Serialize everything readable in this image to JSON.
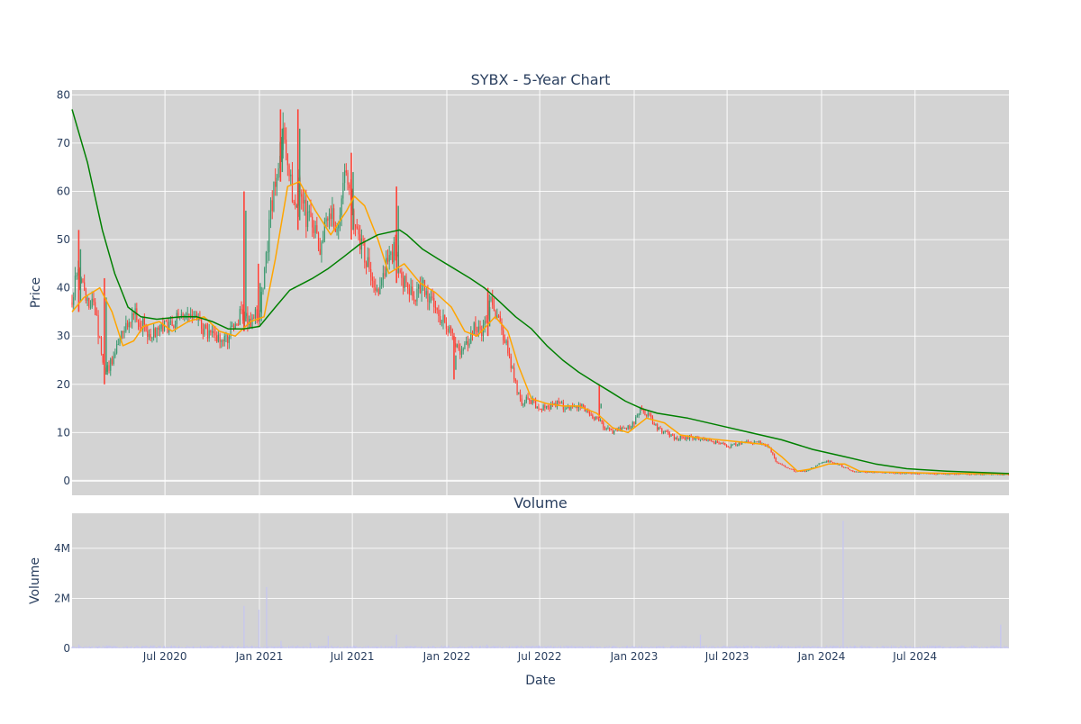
{
  "chart_data": [
    {
      "type": "candlestick",
      "title": "SYBX - 5-Year Chart",
      "xlabel": "",
      "ylabel": "Price",
      "ylim": [
        -3,
        81
      ],
      "yticks": [
        0,
        10,
        20,
        30,
        40,
        50,
        60,
        70,
        80
      ],
      "x_range": [
        "2020-01-02",
        "2024-12-31"
      ],
      "grid": true,
      "background": "#d3d3d3",
      "up_color": "#3d9970",
      "down_color": "#ff4136",
      "price_path": [
        [
          "2020-01-02",
          37
        ],
        [
          "2020-01-10",
          43
        ],
        [
          "2020-01-20",
          41
        ],
        [
          "2020-02-01",
          38
        ],
        [
          "2020-02-15",
          35
        ],
        [
          "2020-02-24",
          30
        ],
        [
          "2020-03-06",
          22
        ],
        [
          "2020-03-16",
          24
        ],
        [
          "2020-04-01",
          28
        ],
        [
          "2020-04-15",
          32
        ],
        [
          "2020-05-01",
          35
        ],
        [
          "2020-05-15",
          33
        ],
        [
          "2020-06-01",
          30
        ],
        [
          "2020-06-15",
          31
        ],
        [
          "2020-07-01",
          32
        ],
        [
          "2020-07-15",
          33
        ],
        [
          "2020-08-01",
          34
        ],
        [
          "2020-08-15",
          36
        ],
        [
          "2020-09-01",
          34
        ],
        [
          "2020-09-15",
          31
        ],
        [
          "2020-10-01",
          30
        ],
        [
          "2020-10-15",
          29
        ],
        [
          "2020-11-01",
          30
        ],
        [
          "2020-11-15",
          33
        ],
        [
          "2020-12-01",
          35
        ],
        [
          "2020-12-15",
          33
        ],
        [
          "2021-01-01",
          35
        ],
        [
          "2021-01-15",
          47
        ],
        [
          "2021-01-25",
          58
        ],
        [
          "2021-02-05",
          62
        ],
        [
          "2021-02-15",
          72
        ],
        [
          "2021-02-25",
          65
        ],
        [
          "2021-03-10",
          57
        ],
        [
          "2021-03-20",
          62
        ],
        [
          "2021-04-01",
          55
        ],
        [
          "2021-04-15",
          52
        ],
        [
          "2021-05-01",
          48
        ],
        [
          "2021-05-15",
          57
        ],
        [
          "2021-06-01",
          52
        ],
        [
          "2021-06-15",
          64
        ],
        [
          "2021-07-01",
          57
        ],
        [
          "2021-07-15",
          49
        ],
        [
          "2021-08-01",
          45
        ],
        [
          "2021-08-20",
          39
        ],
        [
          "2021-09-05",
          45
        ],
        [
          "2021-09-20",
          48
        ],
        [
          "2021-10-01",
          42
        ],
        [
          "2021-10-15",
          40
        ],
        [
          "2021-11-01",
          38
        ],
        [
          "2021-11-15",
          40
        ],
        [
          "2021-12-01",
          37
        ],
        [
          "2021-12-20",
          34
        ],
        [
          "2022-01-10",
          30
        ],
        [
          "2022-01-25",
          27
        ],
        [
          "2022-02-10",
          29
        ],
        [
          "2022-02-25",
          32
        ],
        [
          "2022-03-10",
          30
        ],
        [
          "2022-03-25",
          37
        ],
        [
          "2022-04-10",
          34
        ],
        [
          "2022-04-25",
          29
        ],
        [
          "2022-05-10",
          22
        ],
        [
          "2022-05-25",
          16
        ],
        [
          "2022-06-10",
          17
        ],
        [
          "2022-07-01",
          15
        ],
        [
          "2022-08-01",
          16
        ],
        [
          "2022-09-01",
          15
        ],
        [
          "2022-09-20",
          16
        ],
        [
          "2022-10-05",
          14
        ],
        [
          "2022-10-20",
          13
        ],
        [
          "2022-11-05",
          11
        ],
        [
          "2022-11-20",
          10
        ],
        [
          "2022-12-10",
          11
        ],
        [
          "2022-12-25",
          11
        ],
        [
          "2023-01-05",
          13
        ],
        [
          "2023-01-15",
          15
        ],
        [
          "2023-02-01",
          13
        ],
        [
          "2023-02-15",
          11
        ],
        [
          "2023-03-01",
          10
        ],
        [
          "2023-03-20",
          9
        ],
        [
          "2023-04-10",
          9
        ],
        [
          "2023-05-01",
          9
        ],
        [
          "2023-06-01",
          8
        ],
        [
          "2023-06-20",
          8
        ],
        [
          "2023-07-01",
          7
        ],
        [
          "2023-08-01",
          8
        ],
        [
          "2023-09-01",
          8
        ],
        [
          "2023-09-20",
          7
        ],
        [
          "2023-10-05",
          4
        ],
        [
          "2023-10-20",
          3
        ],
        [
          "2023-11-10",
          2
        ],
        [
          "2023-12-01",
          2
        ],
        [
          "2023-12-20",
          3
        ],
        [
          "2024-01-01",
          4
        ],
        [
          "2024-01-20",
          4
        ],
        [
          "2024-02-10",
          3
        ],
        [
          "2024-03-01",
          2
        ],
        [
          "2024-04-01",
          1.8
        ],
        [
          "2024-06-01",
          1.6
        ],
        [
          "2024-08-01",
          1.5
        ],
        [
          "2024-10-01",
          1.4
        ],
        [
          "2024-12-31",
          1.3
        ]
      ],
      "spikes": [
        [
          "2020-01-15",
          52,
          35
        ],
        [
          "2020-03-05",
          42,
          20
        ],
        [
          "2020-12-02",
          60,
          31
        ],
        [
          "2020-12-30",
          45,
          33
        ],
        [
          "2021-02-11",
          77,
          62
        ],
        [
          "2021-03-17",
          77,
          52
        ],
        [
          "2021-06-29",
          68,
          50
        ],
        [
          "2021-09-25",
          61,
          41
        ],
        [
          "2022-01-15",
          30,
          21
        ],
        [
          "2022-03-22",
          40,
          30
        ],
        [
          "2022-10-25",
          20,
          13
        ]
      ],
      "overlays": [
        {
          "name": "",
          "color": "#ffa500",
          "points": [
            [
              "2020-01-02",
              35
            ],
            [
              "2020-01-25",
              38
            ],
            [
              "2020-02-25",
              40
            ],
            [
              "2020-03-20",
              35
            ],
            [
              "2020-04-10",
              28
            ],
            [
              "2020-05-01",
              29
            ],
            [
              "2020-05-20",
              32
            ],
            [
              "2020-06-20",
              33
            ],
            [
              "2020-07-15",
              31
            ],
            [
              "2020-08-15",
              33
            ],
            [
              "2020-09-15",
              34
            ],
            [
              "2020-10-15",
              31
            ],
            [
              "2020-11-15",
              30
            ],
            [
              "2020-12-15",
              33
            ],
            [
              "2021-01-10",
              34
            ],
            [
              "2021-02-01",
              46
            ],
            [
              "2021-02-25",
              61
            ],
            [
              "2021-03-20",
              62
            ],
            [
              "2021-04-20",
              56
            ],
            [
              "2021-05-20",
              51
            ],
            [
              "2021-06-20",
              56
            ],
            [
              "2021-07-05",
              59
            ],
            [
              "2021-07-25",
              57
            ],
            [
              "2021-08-20",
              50
            ],
            [
              "2021-09-10",
              43
            ],
            [
              "2021-10-10",
              45
            ],
            [
              "2021-11-10",
              41
            ],
            [
              "2021-12-10",
              39
            ],
            [
              "2022-01-10",
              36
            ],
            [
              "2022-02-05",
              31
            ],
            [
              "2022-03-01",
              30
            ],
            [
              "2022-04-05",
              34
            ],
            [
              "2022-04-30",
              31
            ],
            [
              "2022-05-20",
              24
            ],
            [
              "2022-06-15",
              17
            ],
            [
              "2022-07-15",
              16
            ],
            [
              "2022-08-15",
              15.5
            ],
            [
              "2022-09-15",
              15.5
            ],
            [
              "2022-10-20",
              14
            ],
            [
              "2022-11-20",
              11
            ],
            [
              "2022-12-20",
              10
            ],
            [
              "2023-01-25",
              13
            ],
            [
              "2023-03-01",
              12
            ],
            [
              "2023-04-01",
              9.5
            ],
            [
              "2023-05-01",
              9
            ],
            [
              "2023-06-15",
              8.5
            ],
            [
              "2023-08-01",
              8
            ],
            [
              "2023-09-15",
              7.5
            ],
            [
              "2023-10-15",
              5
            ],
            [
              "2023-11-15",
              2
            ],
            [
              "2023-12-15",
              2.5
            ],
            [
              "2024-01-15",
              3.5
            ],
            [
              "2024-02-15",
              3.5
            ],
            [
              "2024-03-15",
              2
            ],
            [
              "2024-05-01",
              1.8
            ],
            [
              "2024-08-01",
              1.6
            ],
            [
              "2024-12-31",
              1.4
            ]
          ]
        },
        {
          "name": "",
          "color": "#008000",
          "points": [
            [
              "2020-01-02",
              77
            ],
            [
              "2020-02-01",
              66
            ],
            [
              "2020-03-01",
              52
            ],
            [
              "2020-03-25",
              43
            ],
            [
              "2020-04-20",
              36
            ],
            [
              "2020-05-15",
              34
            ],
            [
              "2020-06-15",
              33.5
            ],
            [
              "2020-08-01",
              34
            ],
            [
              "2020-09-01",
              34
            ],
            [
              "2020-10-01",
              33
            ],
            [
              "2020-11-01",
              31.5
            ],
            [
              "2020-12-01",
              31.5
            ],
            [
              "2021-01-01",
              32
            ],
            [
              "2021-02-01",
              36
            ],
            [
              "2021-03-01",
              39.5
            ],
            [
              "2021-04-15",
              42
            ],
            [
              "2021-05-15",
              44
            ],
            [
              "2021-06-15",
              46.5
            ],
            [
              "2021-07-15",
              49
            ],
            [
              "2021-08-20",
              51
            ],
            [
              "2021-10-01",
              52
            ],
            [
              "2021-10-15",
              51
            ],
            [
              "2021-11-15",
              48
            ],
            [
              "2021-12-15",
              46
            ],
            [
              "2022-01-15",
              44
            ],
            [
              "2022-02-15",
              42
            ],
            [
              "2022-03-15",
              40
            ],
            [
              "2022-04-15",
              37
            ],
            [
              "2022-05-15",
              34
            ],
            [
              "2022-06-15",
              31.5
            ],
            [
              "2022-07-15",
              28
            ],
            [
              "2022-08-15",
              25
            ],
            [
              "2022-09-15",
              22.5
            ],
            [
              "2022-10-15",
              20.5
            ],
            [
              "2022-11-15",
              18.5
            ],
            [
              "2022-12-15",
              16.5
            ],
            [
              "2023-01-15",
              15
            ],
            [
              "2023-02-15",
              14
            ],
            [
              "2023-04-15",
              13
            ],
            [
              "2023-06-15",
              11.5
            ],
            [
              "2023-08-15",
              10
            ],
            [
              "2023-10-15",
              8.5
            ],
            [
              "2023-12-15",
              6.5
            ],
            [
              "2024-02-15",
              5
            ],
            [
              "2024-04-15",
              3.5
            ],
            [
              "2024-06-15",
              2.5
            ],
            [
              "2024-09-01",
              2
            ],
            [
              "2024-12-31",
              1.5
            ]
          ]
        }
      ]
    },
    {
      "type": "bar",
      "title": "Volume",
      "xlabel": "Date",
      "ylabel": "Volume",
      "ylim": [
        0,
        5400000
      ],
      "yticks": [
        0,
        2000000,
        4000000
      ],
      "ytick_labels": [
        "0",
        "2M",
        "4M"
      ],
      "xticks": [
        "2020-07-01",
        "2021-01-01",
        "2021-07-01",
        "2022-01-01",
        "2022-07-01",
        "2023-01-01",
        "2023-07-01",
        "2024-01-01",
        "2024-07-01"
      ],
      "xtick_labels": [
        "Jul 2020",
        "Jan 2021",
        "Jul 2021",
        "Jan 2022",
        "Jul 2022",
        "Jan 2023",
        "Jul 2023",
        "Jan 2024",
        "Jul 2024"
      ],
      "x_range": [
        "2020-01-02",
        "2024-12-31"
      ],
      "grid": true,
      "background": "#d3d3d3",
      "bar_color": "#c6c6f0",
      "baseline_volume": 70000,
      "spikes": [
        [
          "2020-01-15",
          150000
        ],
        [
          "2020-03-10",
          120000
        ],
        [
          "2020-12-02",
          1700000
        ],
        [
          "2020-12-31",
          1550000
        ],
        [
          "2021-01-15",
          2450000
        ],
        [
          "2021-02-12",
          300000
        ],
        [
          "2021-04-10",
          220000
        ],
        [
          "2021-05-15",
          500000
        ],
        [
          "2021-09-25",
          550000
        ],
        [
          "2022-03-20",
          150000
        ],
        [
          "2023-05-10",
          550000
        ],
        [
          "2023-10-10",
          150000
        ],
        [
          "2024-02-12",
          5100000
        ],
        [
          "2024-03-20",
          120000
        ],
        [
          "2024-12-15",
          950000
        ]
      ]
    }
  ]
}
